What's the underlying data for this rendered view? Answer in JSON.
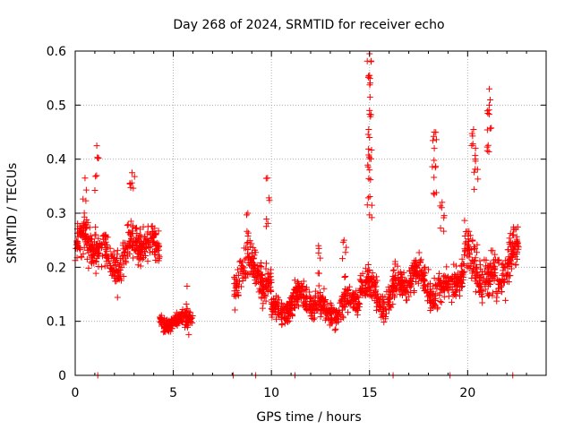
{
  "chart_data": {
    "type": "scatter",
    "title": "Day 268 of 2024, SRMTID for receiver echo",
    "xlabel": "GPS time / hours",
    "ylabel": "SRMTID / TECUs",
    "xlim": [
      0,
      24
    ],
    "ylim": [
      0,
      0.6
    ],
    "x_ticks": [
      0,
      5,
      10,
      15,
      20
    ],
    "x_tick_labels": [
      "0",
      "5",
      "10",
      "15",
      "20"
    ],
    "y_ticks": [
      0,
      0.1,
      0.2,
      0.3,
      0.4,
      0.5,
      0.6
    ],
    "y_tick_labels": [
      "0",
      "0.1",
      "0.2",
      "0.3",
      "0.4",
      "0.5",
      "0.6"
    ],
    "grid": true,
    "marker": "+",
    "series": [
      {
        "name": "SRMTID",
        "color": "#ff0000",
        "segments": [
          {
            "x_start": 0.0,
            "x_end": 4.3,
            "baseline": 0.23,
            "spread": 0.06,
            "peaks": [
              [
                1.1,
                0.425
              ],
              [
                2.9,
                0.375
              ],
              [
                0.5,
                0.365
              ]
            ]
          },
          {
            "x_start": 4.3,
            "x_end": 6.0,
            "baseline": 0.105,
            "spread": 0.025,
            "peaks": [
              [
                5.7,
                0.165
              ]
            ]
          },
          {
            "x_start": 8.1,
            "x_end": 10.0,
            "baseline": 0.18,
            "spread": 0.06,
            "peaks": [
              [
                9.8,
                0.365
              ],
              [
                8.8,
                0.3
              ]
            ]
          },
          {
            "x_start": 10.0,
            "x_end": 14.5,
            "baseline": 0.13,
            "spread": 0.04,
            "peaks": [
              [
                12.4,
                0.24
              ],
              [
                13.7,
                0.25
              ]
            ]
          },
          {
            "x_start": 14.5,
            "x_end": 17.0,
            "baseline": 0.16,
            "spread": 0.05,
            "peaks": [
              [
                15.0,
                0.595
              ],
              [
                15.0,
                0.555
              ],
              [
                15.0,
                0.49
              ],
              [
                15.0,
                0.44
              ],
              [
                15.0,
                0.38
              ]
            ]
          },
          {
            "x_start": 17.0,
            "x_end": 19.8,
            "baseline": 0.17,
            "spread": 0.05,
            "peaks": [
              [
                18.3,
                0.45
              ],
              [
                18.3,
                0.42
              ],
              [
                18.7,
                0.32
              ]
            ]
          },
          {
            "x_start": 19.8,
            "x_end": 22.6,
            "baseline": 0.2,
            "spread": 0.07,
            "peaks": [
              [
                21.1,
                0.53
              ],
              [
                21.1,
                0.5
              ],
              [
                20.3,
                0.455
              ],
              [
                20.4,
                0.42
              ]
            ]
          }
        ],
        "zero_points": [
          1.15,
          8.05,
          9.2,
          11.2,
          16.2,
          19.1,
          22.3
        ]
      }
    ]
  }
}
